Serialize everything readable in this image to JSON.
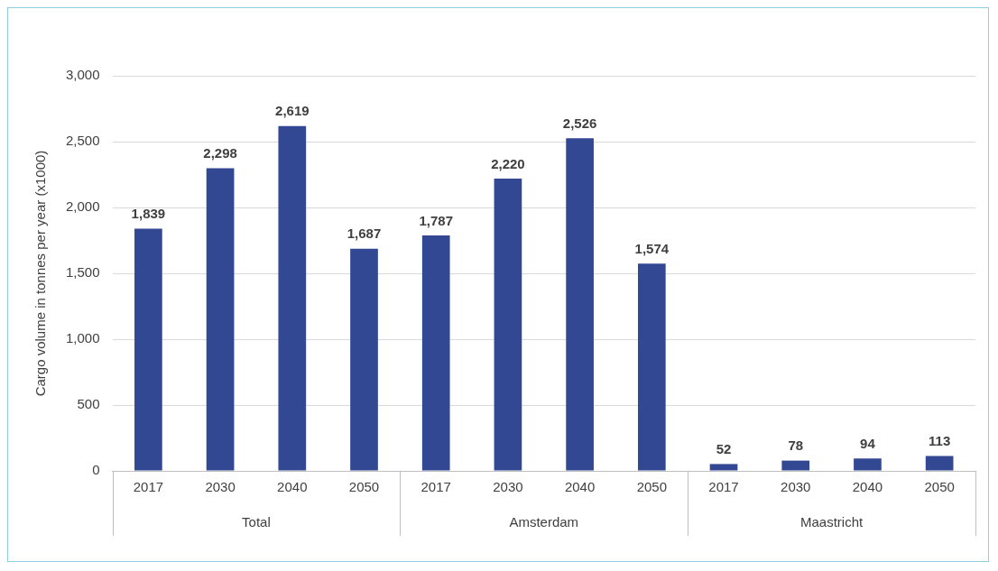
{
  "chart_data": {
    "type": "bar",
    "ylabel": "Cargo volume in tonnes per year (x1000)",
    "categories": [
      "2017",
      "2030",
      "2040",
      "2050",
      "2017",
      "2030",
      "2040",
      "2050",
      "2017",
      "2030",
      "2040",
      "2050"
    ],
    "values": [
      1839,
      2298,
      2619,
      1687,
      1787,
      2220,
      2526,
      1574,
      52,
      78,
      94,
      113
    ],
    "color": "#334893",
    "value_labels": [
      "1,839",
      "2,298",
      "2,619",
      "1,687",
      "1,787",
      "2,220",
      "2,526",
      "1,574",
      "52",
      "78",
      "94",
      "113"
    ],
    "ylim": [
      0,
      3000
    ],
    "yticks": [
      0,
      500,
      {
        "value": 1000,
        "label": "1,000"
      },
      {
        "value": 1500,
        "label": "1,500"
      },
      {
        "value": 2000,
        "label": "2,000"
      },
      {
        "value": 2500,
        "label": "2,500"
      },
      {
        "value": 3000,
        "label": "3,000"
      }
    ],
    "grid": "y",
    "legend": false,
    "annotations": [
      "Total",
      "Amsterdam",
      "Maastricht"
    ]
  }
}
